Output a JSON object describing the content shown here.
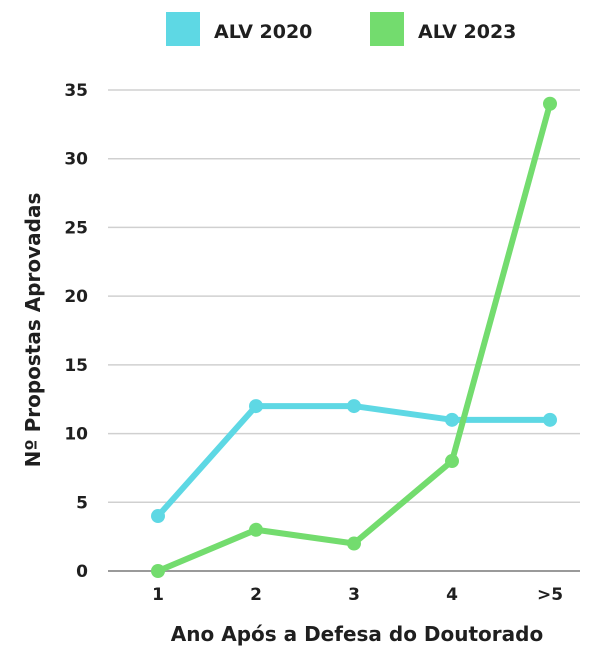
{
  "chart_data": {
    "type": "line",
    "categories": [
      "1",
      "2",
      "3",
      "4",
      ">5"
    ],
    "series": [
      {
        "name": "ALV 2020",
        "color": "#5ed8e4",
        "values": [
          4,
          12,
          12,
          11,
          11
        ]
      },
      {
        "name": "ALV 2023",
        "color": "#73dc6e",
        "values": [
          0,
          3,
          2,
          8,
          34
        ]
      }
    ],
    "xlabel": "Ano Após a Defesa do Doutorado",
    "ylabel": "Nº Propostas Aprovadas",
    "ylim": [
      0,
      35
    ],
    "yticks": [
      0,
      5,
      10,
      15,
      20,
      25,
      30,
      35
    ],
    "grid": true,
    "legend_position": "top"
  }
}
